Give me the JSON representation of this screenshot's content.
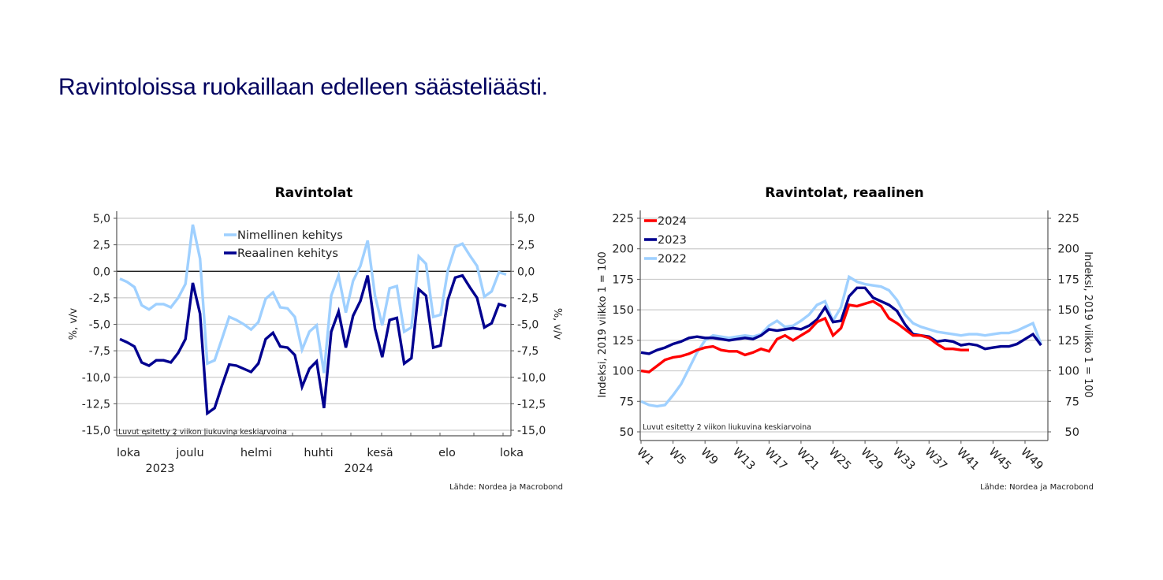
{
  "page": {
    "headline": "Ravintoloissa ruokaillaan edelleen säästeliäästi."
  },
  "colors": {
    "headline": "#00005e",
    "light_blue": "#9fd0ff",
    "dark_blue": "#00008f",
    "red": "#ff0000",
    "grid": "#cccccc",
    "axis": "#555555"
  },
  "chart_data": [
    {
      "type": "line",
      "title": "Ravintolat",
      "ylabel_left": "%, v/v",
      "ylabel_right": "%, v/v",
      "ylim": [
        -15,
        5
      ],
      "yticks": [
        "5,0",
        "2,5",
        "0,0",
        "-2,5",
        "-5,0",
        "-7,5",
        "-10,0",
        "-12,5",
        "-15,0"
      ],
      "ytick_values": [
        5,
        2.5,
        0,
        -2.5,
        -5,
        -7.5,
        -10,
        -12.5,
        -15
      ],
      "xtick_labels": [
        "loka",
        "joulu",
        "helmi",
        "huhti",
        "kesä",
        "elo",
        "loka"
      ],
      "year_labels": [
        "2023",
        "2024"
      ],
      "note": "Luvut esitetty 2 viikon liukuvina keskiarvoina",
      "source": "Lähde: Nordea ja Macrobond",
      "legend_position": "top-center",
      "grid": true,
      "series": [
        {
          "name": "Nimellinen kehitys",
          "color": "#9fd0ff",
          "values": [
            -0.7,
            -1.0,
            -1.5,
            -3.2,
            -3.6,
            -3.1,
            -3.1,
            -3.4,
            -2.5,
            -1.2,
            4.4,
            1.2,
            -8.7,
            -8.4,
            -6.4,
            -4.3,
            -4.6,
            -5.0,
            -5.5,
            -4.8,
            -2.6,
            -2.0,
            -3.4,
            -3.5,
            -4.3,
            -7.4,
            -5.7,
            -5.1,
            -9.6,
            -2.3,
            -0.4,
            -3.9,
            -0.9,
            0.5,
            2.9,
            -2.3,
            -5.1,
            -1.6,
            -1.4,
            -5.7,
            -5.3,
            1.4,
            0.7,
            -4.3,
            -4.1,
            0.1,
            2.3,
            2.6,
            1.5,
            0.5,
            -2.4,
            -1.9,
            -0.1,
            -0.3
          ]
        },
        {
          "name": "Reaalinen kehitys",
          "color": "#00008f",
          "values": [
            -6.4,
            -6.7,
            -7.1,
            -8.6,
            -8.9,
            -8.4,
            -8.4,
            -8.6,
            -7.7,
            -6.4,
            -1.1,
            -4.0,
            -13.4,
            -12.9,
            -10.8,
            -8.8,
            -8.9,
            -9.2,
            -9.5,
            -8.7,
            -6.4,
            -5.8,
            -7.1,
            -7.2,
            -7.9,
            -10.9,
            -9.2,
            -8.5,
            -12.9,
            -5.7,
            -3.8,
            -7.2,
            -4.2,
            -2.8,
            -0.4,
            -5.4,
            -8.1,
            -4.6,
            -4.4,
            -8.7,
            -8.2,
            -1.7,
            -2.3,
            -7.2,
            -7.0,
            -2.7,
            -0.6,
            -0.4,
            -1.5,
            -2.5,
            -5.3,
            -4.9,
            -3.1,
            -3.3
          ]
        }
      ]
    },
    {
      "type": "line",
      "title": "Ravintolat, reaalinen",
      "ylabel_left": "Indeksi, 2019 viikko 1 = 100",
      "ylabel_right": "Indeksi, 2019 viikko 1 = 100",
      "ylim": [
        50,
        225
      ],
      "yticks": [
        "225",
        "200",
        "175",
        "150",
        "125",
        "100",
        "75",
        "50"
      ],
      "ytick_values": [
        225,
        200,
        175,
        150,
        125,
        100,
        75,
        50
      ],
      "xtick_labels": [
        "W1",
        "W5",
        "W9",
        "W13",
        "W17",
        "W21",
        "W25",
        "W29",
        "W33",
        "W37",
        "W41",
        "W45",
        "W49"
      ],
      "xtick_weeks": [
        1,
        5,
        9,
        13,
        17,
        21,
        25,
        29,
        33,
        37,
        41,
        45,
        49
      ],
      "xlim": [
        1,
        52
      ],
      "note": "Luvut esitetty 2 viikon liukuvina keskiarvoina",
      "source": "Lähde: Nordea ja Macrobond",
      "legend_position": "top-left",
      "grid": true,
      "series": [
        {
          "name": "2024",
          "color": "#ff0000",
          "values": [
            100,
            99,
            104,
            109,
            111,
            112,
            114,
            117,
            119,
            120,
            117,
            116,
            116,
            113,
            115,
            118,
            116,
            126,
            129,
            125,
            129,
            133,
            140,
            143,
            129,
            135,
            154,
            153,
            155,
            157,
            153,
            143,
            139,
            134,
            129,
            129,
            127,
            122,
            118,
            118,
            117,
            117
          ]
        },
        {
          "name": "2023",
          "color": "#00008f",
          "values": [
            115,
            114,
            117,
            119,
            122,
            124,
            127,
            128,
            127,
            127,
            126,
            125,
            126,
            127,
            126,
            129,
            134,
            133,
            134,
            135,
            134,
            137,
            142,
            152,
            140,
            141,
            161,
            168,
            168,
            160,
            157,
            154,
            149,
            138,
            130,
            129,
            128,
            124,
            125,
            124,
            121,
            122,
            121,
            118,
            119,
            120,
            120,
            122,
            126,
            130,
            121
          ]
        },
        {
          "name": "2022",
          "color": "#9fd0ff",
          "values": [
            75,
            72,
            71,
            72,
            80,
            89,
            102,
            115,
            125,
            129,
            128,
            127,
            128,
            129,
            128,
            130,
            137,
            141,
            136,
            137,
            141,
            146,
            154,
            157,
            141,
            152,
            177,
            173,
            171,
            170,
            169,
            166,
            158,
            146,
            139,
            136,
            134,
            132,
            131,
            130,
            129,
            130,
            130,
            129,
            130,
            131,
            131,
            133,
            136,
            139,
            122
          ]
        }
      ]
    }
  ]
}
